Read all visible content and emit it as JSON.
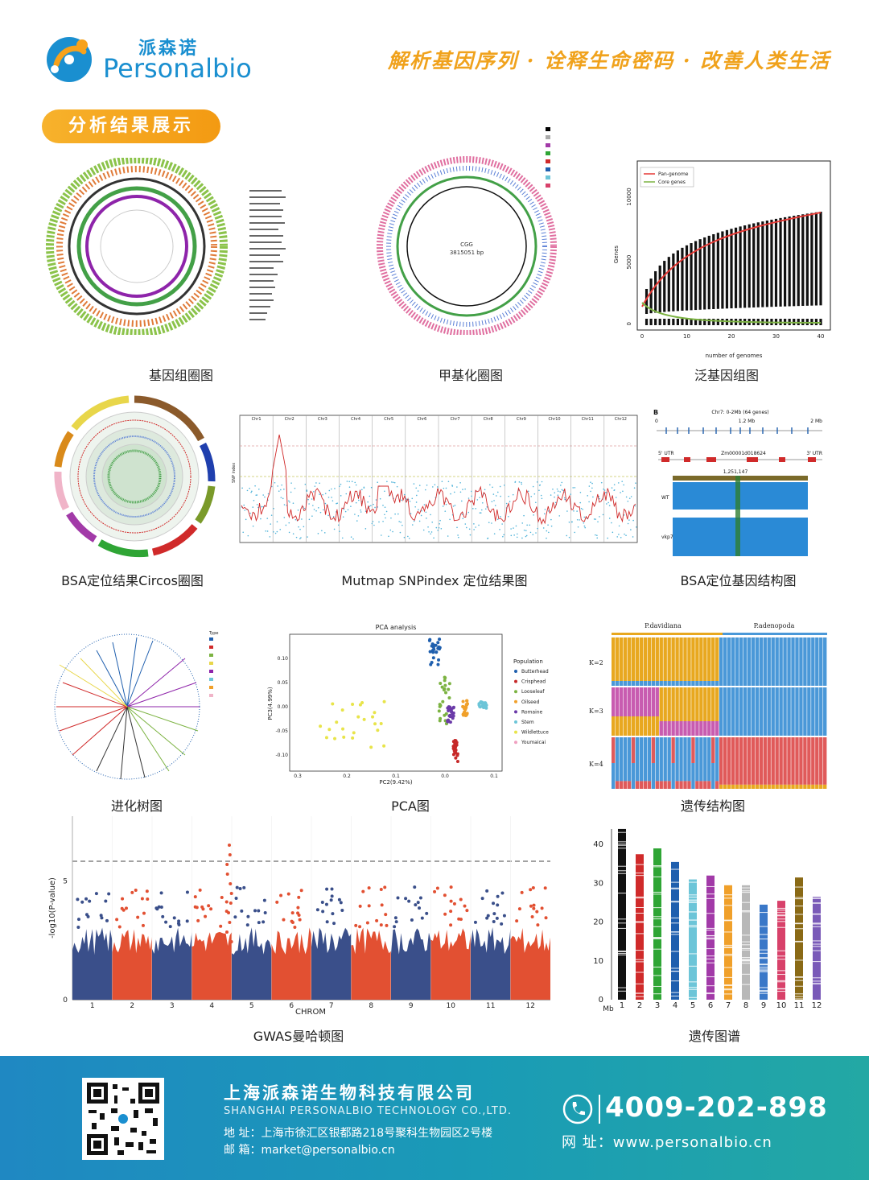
{
  "header": {
    "brand_cn": "派森诺",
    "brand_en": "Personalbio",
    "slogan": "解析基因序列 · 诠释生命密码 · 改善人类生活"
  },
  "section_title": "分析结果展示",
  "panels": {
    "genome_circle": {
      "caption": "基因组圈图"
    },
    "methylation_circle": {
      "caption": "甲基化圈图",
      "center_label": "CGG",
      "center_bp": "3815051 bp"
    },
    "pan_genome": {
      "caption": "泛基因组图",
      "legend": [
        "Pan-genome",
        "Core genes"
      ],
      "xlabel": "number of genomes",
      "ylabel": "Genes",
      "yticks": [
        "0",
        "5000",
        "10000"
      ],
      "xticks": [
        "0",
        "10",
        "20",
        "30",
        "40"
      ]
    },
    "bsa_circos": {
      "caption": "BSA定位结果Circos圈图"
    },
    "mutmap": {
      "caption": "Mutmap SNPindex 定位结果图",
      "chroms": [
        "Chr1",
        "Chr2",
        "Chr3",
        "Chr4",
        "Chr5",
        "Chr6",
        "Chr7",
        "Chr8",
        "Chr9",
        "Chr10",
        "Chr11",
        "Chr12"
      ],
      "ylabel": "SNP index"
    },
    "bsa_gene": {
      "caption": "BSA定位基因结构图",
      "title": "Chr7: 0-2Mb (64 genes)",
      "panel_letter": "B",
      "ticks": [
        "0",
        "1.2 Mb",
        "2 Mb"
      ],
      "utr5": "5' UTR",
      "utr3": "3' UTR",
      "gene_id": "Zm00001d018624",
      "position": "1,251,147",
      "wt": "WT",
      "mutant": "vkp7"
    },
    "phylo_tree": {
      "caption": "进化树图",
      "legend_title": "Type"
    },
    "pca": {
      "caption": "PCA图",
      "title": "PCA analysis",
      "xlabel": "PC2(9.42%)",
      "ylabel": "PC3(4.99%)",
      "legend_title": "Population",
      "populations": [
        "Butterhead",
        "Crisphead",
        "Looseleaf",
        "Oilseed",
        "Romaine",
        "Stem",
        "Wildlettuce",
        "Youmaicai"
      ],
      "yticks": [
        "0.10",
        "0.05",
        "0.00",
        "-0.05",
        "-0.10"
      ],
      "xticks": [
        "0.3",
        "0.2",
        "0.1",
        "0.0",
        "0.1"
      ]
    },
    "structure": {
      "caption": "遗传结构图",
      "groups": [
        "P.davidiana",
        "P.adenopoda"
      ],
      "k_labels": [
        "K=2",
        "K=3",
        "K=4"
      ]
    },
    "gwas": {
      "caption": "GWAS曼哈顿图",
      "ylabel": "-log10(P-value)",
      "xlabel": "CHROM",
      "chroms": [
        "1",
        "2",
        "3",
        "4",
        "5",
        "6",
        "7",
        "8",
        "9",
        "10",
        "11",
        "12"
      ],
      "yticks": [
        "0",
        "5"
      ]
    },
    "genetic_map": {
      "caption": "遗传图谱",
      "unit": "Mb",
      "yticks": [
        "0",
        "10",
        "20",
        "30",
        "40"
      ],
      "groups": [
        "1",
        "2",
        "3",
        "4",
        "5",
        "6",
        "7",
        "8",
        "9",
        "10",
        "11",
        "12"
      ],
      "lengths": [
        44,
        37.5,
        39,
        35.5,
        31,
        32,
        29.5,
        29.5,
        24.5,
        25.5,
        31.5,
        26.5
      ],
      "colors": [
        "#111111",
        "#d02a2a",
        "#2fa535",
        "#1f5fae",
        "#6cc5d8",
        "#a23aa8",
        "#f0a02a",
        "#b8b8b8",
        "#3a78c8",
        "#d8416a",
        "#8a6a16",
        "#7a5ab8"
      ]
    }
  },
  "footer": {
    "company_cn": "上海派森诺生物科技有限公司",
    "company_en": "SHANGHAI PERSONALBIO TECHNOLOGY CO.,LTD.",
    "address": "地  址：上海市徐汇区银都路218号聚科生物园区2号楼",
    "email": "邮  箱：market@personalbio.cn",
    "phone": "4009-202-898",
    "website": "网    址：www.personalbio.cn"
  }
}
